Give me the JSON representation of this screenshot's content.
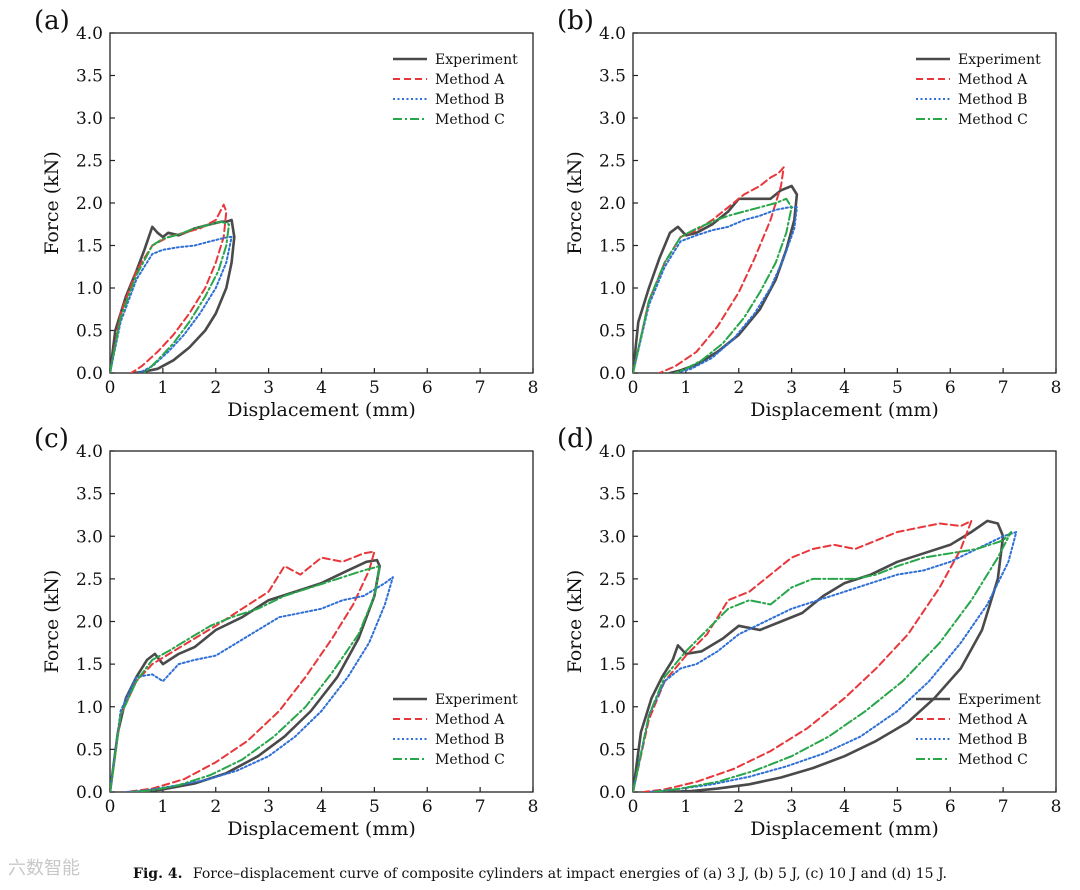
{
  "figure": {
    "caption_label": "Fig. 4.",
    "caption_text": "Force–displacement curve of composite cylinders at impact energies of (a) 3 J, (b) 5 J, (c) 10 J and (d) 15 J.",
    "watermark": "六数智能",
    "colors": {
      "Experiment": "#4a4a4a",
      "Method A": "#e8373a",
      "Method B": "#2f6fd6",
      "Method C": "#27a64a"
    }
  },
  "chart_data": [
    {
      "type": "line",
      "panel_label": "(a)",
      "xlabel": "Displacement (mm)",
      "ylabel": "Force (kN)",
      "xlim": [
        0,
        8
      ],
      "ylim": [
        0,
        4
      ],
      "xticks": [
        "0",
        "1",
        "2",
        "3",
        "4",
        "5",
        "6",
        "7",
        "8"
      ],
      "yticks": [
        "0.0",
        "0.5",
        "1.0",
        "1.5",
        "2.0",
        "2.5",
        "3.0",
        "3.5",
        "4.0"
      ],
      "legend_position": "top-right",
      "series": [
        {
          "name": "Experiment",
          "x": [
            0,
            0.1,
            0.3,
            0.5,
            0.65,
            0.8,
            0.9,
            1.0,
            1.1,
            1.3,
            1.6,
            1.9,
            2.1,
            2.2,
            2.3,
            2.35,
            2.3,
            2.2,
            2.0,
            1.8,
            1.5,
            1.2,
            0.9,
            0.6,
            0.45
          ],
          "y": [
            0,
            0.5,
            0.9,
            1.2,
            1.45,
            1.72,
            1.65,
            1.6,
            1.65,
            1.62,
            1.7,
            1.75,
            1.78,
            1.78,
            1.8,
            1.6,
            1.3,
            1.0,
            0.7,
            0.5,
            0.3,
            0.15,
            0.05,
            0.01,
            0
          ]
        },
        {
          "name": "Method A",
          "x": [
            0,
            0.2,
            0.5,
            0.8,
            1.1,
            1.4,
            1.7,
            2.0,
            2.15,
            2.2,
            2.15,
            2.0,
            1.8,
            1.5,
            1.2,
            0.9,
            0.6,
            0.4
          ],
          "y": [
            0,
            0.7,
            1.2,
            1.5,
            1.6,
            1.65,
            1.7,
            1.8,
            1.98,
            1.9,
            1.6,
            1.3,
            1.0,
            0.7,
            0.45,
            0.25,
            0.08,
            0
          ]
        },
        {
          "name": "Method B",
          "x": [
            0,
            0.2,
            0.5,
            0.8,
            1.0,
            1.3,
            1.6,
            1.9,
            2.1,
            2.25,
            2.3,
            2.2,
            2.0,
            1.7,
            1.4,
            1.1,
            0.8,
            0.55
          ],
          "y": [
            0,
            0.6,
            1.1,
            1.4,
            1.45,
            1.48,
            1.5,
            1.55,
            1.58,
            1.6,
            1.6,
            1.3,
            1.0,
            0.7,
            0.45,
            0.25,
            0.08,
            0
          ]
        },
        {
          "name": "Method C",
          "x": [
            0,
            0.2,
            0.5,
            0.8,
            1.0,
            1.3,
            1.6,
            1.9,
            2.1,
            2.25,
            2.2,
            2.05,
            1.8,
            1.5,
            1.2,
            0.9,
            0.65
          ],
          "y": [
            0,
            0.65,
            1.15,
            1.5,
            1.58,
            1.63,
            1.7,
            1.75,
            1.78,
            1.75,
            1.5,
            1.2,
            0.9,
            0.6,
            0.35,
            0.15,
            0
          ]
        }
      ]
    },
    {
      "type": "line",
      "panel_label": "(b)",
      "xlabel": "Displacement (mm)",
      "ylabel": "Force (kN)",
      "xlim": [
        0,
        8
      ],
      "ylim": [
        0,
        4
      ],
      "xticks": [
        "0",
        "1",
        "2",
        "3",
        "4",
        "5",
        "6",
        "7",
        "8"
      ],
      "yticks": [
        "0.0",
        "0.5",
        "1.0",
        "1.5",
        "2.0",
        "2.5",
        "3.0",
        "3.5",
        "4.0"
      ],
      "legend_position": "top-right",
      "series": [
        {
          "name": "Experiment",
          "x": [
            0,
            0.1,
            0.3,
            0.5,
            0.7,
            0.85,
            1.0,
            1.2,
            1.5,
            1.8,
            2.0,
            2.3,
            2.6,
            2.8,
            3.0,
            3.1,
            3.05,
            2.9,
            2.7,
            2.4,
            2.0,
            1.6,
            1.2,
            0.9,
            0.7
          ],
          "y": [
            0,
            0.6,
            1.0,
            1.35,
            1.65,
            1.72,
            1.62,
            1.65,
            1.75,
            1.9,
            2.05,
            2.05,
            2.05,
            2.15,
            2.2,
            2.1,
            1.8,
            1.45,
            1.1,
            0.75,
            0.45,
            0.25,
            0.1,
            0.03,
            0
          ]
        },
        {
          "name": "Method A",
          "x": [
            0,
            0.3,
            0.6,
            0.9,
            1.2,
            1.5,
            1.8,
            2.1,
            2.4,
            2.6,
            2.75,
            2.85,
            2.8,
            2.6,
            2.3,
            2.0,
            1.6,
            1.2,
            0.8,
            0.5
          ],
          "y": [
            0,
            0.85,
            1.3,
            1.6,
            1.68,
            1.8,
            1.95,
            2.1,
            2.2,
            2.3,
            2.35,
            2.42,
            2.2,
            1.8,
            1.35,
            0.95,
            0.55,
            0.25,
            0.08,
            0
          ]
        },
        {
          "name": "Method B",
          "x": [
            0,
            0.3,
            0.6,
            0.9,
            1.2,
            1.5,
            1.8,
            2.1,
            2.4,
            2.7,
            2.95,
            3.1,
            3.05,
            2.85,
            2.6,
            2.3,
            1.9,
            1.5,
            1.1,
            0.8
          ],
          "y": [
            0,
            0.8,
            1.25,
            1.55,
            1.62,
            1.68,
            1.72,
            1.8,
            1.85,
            1.92,
            1.95,
            1.95,
            1.7,
            1.35,
            1.0,
            0.7,
            0.4,
            0.18,
            0.05,
            0
          ]
        },
        {
          "name": "Method C",
          "x": [
            0,
            0.3,
            0.6,
            0.9,
            1.2,
            1.5,
            1.8,
            2.1,
            2.4,
            2.7,
            2.9,
            3.0,
            2.9,
            2.7,
            2.4,
            2.1,
            1.7,
            1.3,
            1.0,
            0.8
          ],
          "y": [
            0,
            0.85,
            1.3,
            1.6,
            1.7,
            1.78,
            1.85,
            1.9,
            1.95,
            2.0,
            2.05,
            1.95,
            1.65,
            1.3,
            0.95,
            0.65,
            0.35,
            0.15,
            0.05,
            0
          ]
        }
      ]
    },
    {
      "type": "line",
      "panel_label": "(c)",
      "xlabel": "Displacement (mm)",
      "ylabel": "Force (kN)",
      "xlim": [
        0,
        8
      ],
      "ylim": [
        0,
        4
      ],
      "xticks": [
        "0",
        "1",
        "2",
        "3",
        "4",
        "5",
        "6",
        "7",
        "8"
      ],
      "yticks": [
        "0.0",
        "0.5",
        "1.0",
        "1.5",
        "2.0",
        "2.5",
        "3.0",
        "3.5",
        "4.0"
      ],
      "legend_position": "bottom-right",
      "series": [
        {
          "name": "Experiment",
          "x": [
            0,
            0.15,
            0.3,
            0.5,
            0.7,
            0.85,
            1.0,
            1.3,
            1.6,
            2.0,
            2.5,
            3.0,
            3.5,
            4.0,
            4.5,
            4.85,
            5.05,
            5.1,
            5.0,
            4.7,
            4.3,
            3.8,
            3.3,
            2.8,
            2.2,
            1.6,
            1.0,
            0.5
          ],
          "y": [
            0,
            0.7,
            1.1,
            1.35,
            1.55,
            1.62,
            1.5,
            1.62,
            1.7,
            1.9,
            2.05,
            2.25,
            2.35,
            2.45,
            2.6,
            2.7,
            2.72,
            2.65,
            2.3,
            1.8,
            1.35,
            0.95,
            0.65,
            0.42,
            0.22,
            0.1,
            0.03,
            0
          ]
        },
        {
          "name": "Method A",
          "x": [
            0,
            0.2,
            0.5,
            0.8,
            1.2,
            1.6,
            2.0,
            2.5,
            3.0,
            3.3,
            3.6,
            4.0,
            4.4,
            4.8,
            5.0,
            4.9,
            4.6,
            4.2,
            3.7,
            3.2,
            2.6,
            2.0,
            1.4,
            0.8,
            0.3
          ],
          "y": [
            0,
            0.9,
            1.3,
            1.5,
            1.65,
            1.8,
            1.95,
            2.15,
            2.35,
            2.65,
            2.55,
            2.75,
            2.7,
            2.8,
            2.82,
            2.6,
            2.2,
            1.8,
            1.35,
            0.95,
            0.6,
            0.35,
            0.15,
            0.04,
            0
          ]
        },
        {
          "name": "Method B",
          "x": [
            0,
            0.2,
            0.5,
            0.8,
            1.0,
            1.3,
            1.6,
            2.0,
            2.4,
            2.8,
            3.2,
            3.6,
            4.0,
            4.4,
            4.8,
            5.2,
            5.35,
            5.2,
            4.9,
            4.5,
            4.0,
            3.5,
            3.0,
            2.4,
            1.8,
            1.2,
            0.7,
            0.3
          ],
          "y": [
            0,
            0.95,
            1.35,
            1.38,
            1.3,
            1.5,
            1.55,
            1.6,
            1.75,
            1.9,
            2.05,
            2.1,
            2.15,
            2.25,
            2.3,
            2.45,
            2.52,
            2.2,
            1.75,
            1.35,
            0.95,
            0.65,
            0.42,
            0.25,
            0.14,
            0.07,
            0.02,
            0
          ]
        },
        {
          "name": "Method C",
          "x": [
            0,
            0.2,
            0.5,
            0.8,
            1.1,
            1.5,
            1.9,
            2.3,
            2.8,
            3.3,
            3.8,
            4.3,
            4.8,
            5.1,
            5.0,
            4.7,
            4.2,
            3.7,
            3.1,
            2.5,
            1.9,
            1.3,
            0.8,
            0.4
          ],
          "y": [
            0,
            0.9,
            1.3,
            1.55,
            1.65,
            1.8,
            1.95,
            2.05,
            2.15,
            2.3,
            2.4,
            2.5,
            2.6,
            2.65,
            2.3,
            1.85,
            1.4,
            1.0,
            0.65,
            0.38,
            0.2,
            0.08,
            0.02,
            0
          ]
        }
      ]
    },
    {
      "type": "line",
      "panel_label": "(d)",
      "xlabel": "Displacement (mm)",
      "ylabel": "Force (kN)",
      "xlim": [
        0,
        8
      ],
      "ylim": [
        0,
        4
      ],
      "xticks": [
        "0",
        "1",
        "2",
        "3",
        "4",
        "5",
        "6",
        "7",
        "8"
      ],
      "yticks": [
        "0.0",
        "0.5",
        "1.0",
        "1.5",
        "2.0",
        "2.5",
        "3.0",
        "3.5",
        "4.0"
      ],
      "legend_position": "bottom-right",
      "series": [
        {
          "name": "Experiment",
          "x": [
            0,
            0.15,
            0.35,
            0.55,
            0.75,
            0.85,
            1.0,
            1.3,
            1.7,
            2.0,
            2.4,
            2.8,
            3.2,
            3.6,
            4.0,
            4.5,
            5.0,
            5.5,
            6.0,
            6.4,
            6.7,
            6.9,
            7.0,
            6.9,
            6.6,
            6.2,
            5.7,
            5.2,
            4.6,
            4.0,
            3.4,
            2.8,
            2.2,
            1.6,
            1.1,
            0.6
          ],
          "y": [
            0,
            0.7,
            1.1,
            1.35,
            1.55,
            1.72,
            1.62,
            1.65,
            1.8,
            1.95,
            1.9,
            2.0,
            2.1,
            2.3,
            2.45,
            2.55,
            2.7,
            2.8,
            2.9,
            3.05,
            3.18,
            3.15,
            3.0,
            2.5,
            1.9,
            1.45,
            1.1,
            0.82,
            0.6,
            0.42,
            0.28,
            0.17,
            0.09,
            0.04,
            0.01,
            0
          ]
        },
        {
          "name": "Method A",
          "x": [
            0,
            0.3,
            0.6,
            1.0,
            1.4,
            1.8,
            2.2,
            2.6,
            3.0,
            3.4,
            3.8,
            4.2,
            4.6,
            5.0,
            5.4,
            5.8,
            6.2,
            6.4,
            6.2,
            5.8,
            5.2,
            4.6,
            4.0,
            3.3,
            2.6,
            1.9,
            1.2,
            0.6,
            0.2
          ],
          "y": [
            0,
            0.85,
            1.3,
            1.6,
            1.85,
            2.25,
            2.35,
            2.55,
            2.75,
            2.85,
            2.9,
            2.85,
            2.95,
            3.05,
            3.1,
            3.15,
            3.12,
            3.18,
            2.85,
            2.4,
            1.85,
            1.45,
            1.1,
            0.75,
            0.48,
            0.27,
            0.12,
            0.03,
            0
          ]
        },
        {
          "name": "Method B",
          "x": [
            0,
            0.3,
            0.6,
            0.9,
            1.2,
            1.6,
            2.0,
            2.5,
            3.0,
            3.5,
            4.0,
            4.5,
            5.0,
            5.5,
            6.0,
            6.5,
            7.0,
            7.25,
            7.1,
            6.7,
            6.2,
            5.6,
            5.0,
            4.3,
            3.6,
            2.9,
            2.2,
            1.5,
            0.8,
            0.3
          ],
          "y": [
            0,
            0.9,
            1.3,
            1.45,
            1.5,
            1.65,
            1.85,
            2.0,
            2.15,
            2.25,
            2.35,
            2.45,
            2.55,
            2.6,
            2.7,
            2.85,
            3.0,
            3.05,
            2.7,
            2.2,
            1.75,
            1.3,
            0.95,
            0.65,
            0.45,
            0.3,
            0.18,
            0.09,
            0.03,
            0
          ]
        },
        {
          "name": "Method C",
          "x": [
            0,
            0.3,
            0.6,
            1.0,
            1.4,
            1.8,
            2.2,
            2.6,
            3.0,
            3.4,
            3.8,
            4.2,
            4.6,
            5.0,
            5.5,
            6.0,
            6.5,
            7.0,
            7.15,
            6.9,
            6.4,
            5.8,
            5.1,
            4.4,
            3.7,
            3.0,
            2.3,
            1.6,
            0.9,
            0.4
          ],
          "y": [
            0,
            0.9,
            1.35,
            1.65,
            1.9,
            2.15,
            2.25,
            2.2,
            2.4,
            2.5,
            2.5,
            2.5,
            2.55,
            2.65,
            2.75,
            2.8,
            2.85,
            2.95,
            3.05,
            2.75,
            2.25,
            1.75,
            1.3,
            0.95,
            0.65,
            0.42,
            0.25,
            0.12,
            0.04,
            0
          ]
        }
      ]
    }
  ]
}
